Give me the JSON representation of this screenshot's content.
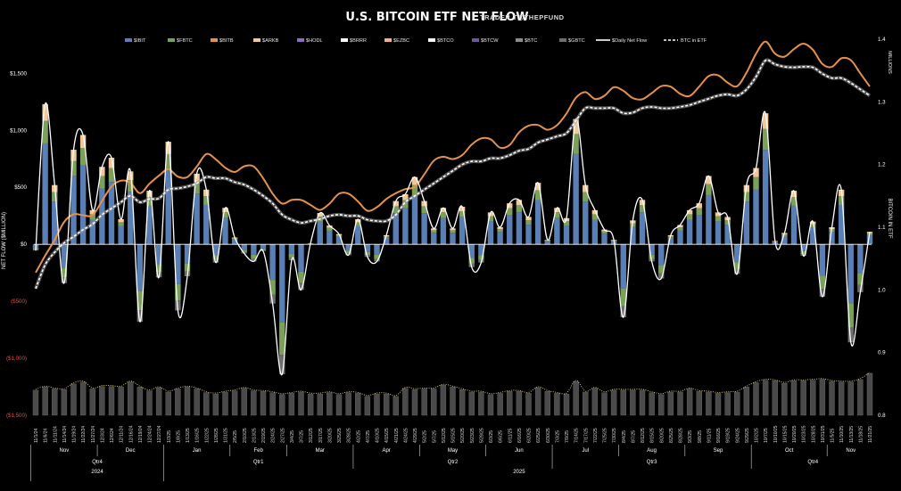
{
  "chart_data": {
    "type": "bar",
    "title": "U.S. BITCOIN ETF NET FLOW",
    "subtitle": "TRADER T@THEPFUND",
    "ylabel": "NET FLOW ($MILLION)",
    "y2label": "BITCOIN IN ETF",
    "y2unit": "MILLIONS",
    "ylim": [
      -1500,
      1800
    ],
    "y2lim": [
      0.8,
      1.4
    ],
    "y_ticks": [
      {
        "value": 1500,
        "label": "$1,500"
      },
      {
        "value": 1000,
        "label": "$1,000"
      },
      {
        "value": 500,
        "label": "$500"
      },
      {
        "value": 0,
        "label": "$0"
      },
      {
        "value": -500,
        "label": "($500)"
      },
      {
        "value": -1000,
        "label": "($1,000)"
      },
      {
        "value": -1500,
        "label": "($1,500)"
      }
    ],
    "y2_ticks": [
      {
        "value": 1.4,
        "label": "1.4"
      },
      {
        "value": 1.3,
        "label": "1.3"
      },
      {
        "value": 1.2,
        "label": "1.2"
      },
      {
        "value": 1.1,
        "label": "1.1"
      },
      {
        "value": 1.0,
        "label": "1.0"
      },
      {
        "value": 0.9,
        "label": "0.9"
      },
      {
        "value": 0.8,
        "label": "0.8"
      }
    ],
    "negative_tick_color": "#ff3b3b",
    "legend_position": "top",
    "legend": [
      {
        "name": "$IBIT",
        "color": "#5a7fb5",
        "kind": "bar"
      },
      {
        "name": "$FBTC",
        "color": "#7aa05a",
        "kind": "bar"
      },
      {
        "name": "$BITB",
        "color": "#e6914a",
        "kind": "bar"
      },
      {
        "name": "$ARKB",
        "color": "#f2c89a",
        "kind": "bar"
      },
      {
        "name": "$HODL",
        "color": "#8a6fc0",
        "kind": "bar"
      },
      {
        "name": "$BRRR",
        "color": "#ffffff",
        "kind": "bar"
      },
      {
        "name": "$EZBC",
        "color": "#f0b090",
        "kind": "bar"
      },
      {
        "name": "$BTCO",
        "color": "#f4f4f4",
        "kind": "bar"
      },
      {
        "name": "$BTCW",
        "color": "#6b5a9a",
        "kind": "bar"
      },
      {
        "name": "$BTC",
        "color": "#8c8c8c",
        "kind": "bar"
      },
      {
        "name": "$GBTC",
        "color": "#6e6e6e",
        "kind": "bar"
      },
      {
        "name": "$Daily Net Flow",
        "color": "#ffffff",
        "kind": "line"
      },
      {
        "name": "BTC in ETF",
        "color": "#ffffff",
        "kind": "dashed"
      }
    ],
    "dates": [
      "11/1/24",
      "11/6/24",
      "11/11/24",
      "11/14/24",
      "11/19/24",
      "11/22/24",
      "11/27/24",
      "12/3/24",
      "12/6/24",
      "12/11/24",
      "12/16/24",
      "12/19/24",
      "12/24/24",
      "12/27/24",
      "1/3/25",
      "1/8/25",
      "1/13/25",
      "1/16/25",
      "1/22/25",
      "1/28/25",
      "1/31/25",
      "2/5/25",
      "2/10/25",
      "2/13/25",
      "2/19/25",
      "2/24/25",
      "2/27/25",
      "3/4/25",
      "3/7/25",
      "3/12/25",
      "3/17/25",
      "3/20/25",
      "3/25/25",
      "3/28/25",
      "4/2/25",
      "4/7/25",
      "4/10/25",
      "4/15/25",
      "4/21/25",
      "4/24/25",
      "4/29/25",
      "5/2/25",
      "5/7/25",
      "5/12/25",
      "5/15/25",
      "5/20/25",
      "5/23/25",
      "5/29/25",
      "6/3/25",
      "6/6/25",
      "6/11/25",
      "6/16/25",
      "6/20/25",
      "6/25/25",
      "6/30/25",
      "7/3/25",
      "7/9/25",
      "7/14/25",
      "7/17/25",
      "7/22/25",
      "7/25/25",
      "7/30/25",
      "8/4/25",
      "8/7/25",
      "8/12/25",
      "8/15/25",
      "8/20/25",
      "8/25/25",
      "8/28/25",
      "9/3/25",
      "9/8/25",
      "9/11/25",
      "9/16/25",
      "9/19/25",
      "9/24/25",
      "9/29/25",
      "10/2/25",
      "10/7/25",
      "10/10/25",
      "10/15/25",
      "10/20/25",
      "10/23/25",
      "10/28/25",
      "10/31/25",
      "11/5/25",
      "11/10/25",
      "11/13/25",
      "11/18/25",
      "11/21/25"
    ],
    "date_values": [
      {
        "date": "11/1/24",
        "daily_net_flow": -55,
        "btc_in_etf": 1.002,
        "btc_in_etf_bars": 0.84
      },
      {
        "date": "11/6/24",
        "daily_net_flow": 1230,
        "btc_in_etf": 1.04,
        "btc_in_etf_bars": 0.845
      },
      {
        "date": "11/11/24",
        "daily_net_flow": 520,
        "btc_in_etf": 1.06,
        "btc_in_etf_bars": 0.842
      },
      {
        "date": "11/14/24",
        "daily_net_flow": -340,
        "btc_in_etf": 1.075,
        "btc_in_etf_bars": 0.841
      },
      {
        "date": "11/19/24",
        "daily_net_flow": 830,
        "btc_in_etf": 1.085,
        "btc_in_etf_bars": 0.85
      },
      {
        "date": "11/22/24",
        "daily_net_flow": 960,
        "btc_in_etf": 1.096,
        "btc_in_etf_bars": 0.853
      },
      {
        "date": "11/27/24",
        "daily_net_flow": 300,
        "btc_in_etf": 1.105,
        "btc_in_etf_bars": 0.842
      },
      {
        "date": "12/3/24",
        "daily_net_flow": 680,
        "btc_in_etf": 1.12,
        "btc_in_etf_bars": 0.846
      },
      {
        "date": "12/6/24",
        "daily_net_flow": 760,
        "btc_in_etf": 1.13,
        "btc_in_etf_bars": 0.846
      },
      {
        "date": "12/11/24",
        "daily_net_flow": 220,
        "btc_in_etf": 1.14,
        "btc_in_etf_bars": 0.845
      },
      {
        "date": "12/16/24",
        "daily_net_flow": 640,
        "btc_in_etf": 1.15,
        "btc_in_etf_bars": 0.853
      },
      {
        "date": "12/19/24",
        "daily_net_flow": -680,
        "btc_in_etf": 1.14,
        "btc_in_etf_bars": 0.845
      },
      {
        "date": "12/24/24",
        "daily_net_flow": 470,
        "btc_in_etf": 1.145,
        "btc_in_etf_bars": 0.839
      },
      {
        "date": "12/27/24",
        "daily_net_flow": -290,
        "btc_in_etf": 1.146,
        "btc_in_etf_bars": 0.844
      },
      {
        "date": "1/3/25",
        "daily_net_flow": 900,
        "btc_in_etf": 1.16,
        "btc_in_etf_bars": 0.837
      },
      {
        "date": "1/8/25",
        "daily_net_flow": -580,
        "btc_in_etf": 1.162,
        "btc_in_etf_bars": 0.842
      },
      {
        "date": "1/13/25",
        "daily_net_flow": -280,
        "btc_in_etf": 1.165,
        "btc_in_etf_bars": 0.845
      },
      {
        "date": "1/16/25",
        "daily_net_flow": 620,
        "btc_in_etf": 1.17,
        "btc_in_etf_bars": 0.842
      },
      {
        "date": "1/22/25",
        "daily_net_flow": 480,
        "btc_in_etf": 1.18,
        "btc_in_etf_bars": 0.836
      },
      {
        "date": "1/28/25",
        "daily_net_flow": -160,
        "btc_in_etf": 1.178,
        "btc_in_etf_bars": 0.834
      },
      {
        "date": "1/31/25",
        "daily_net_flow": 320,
        "btc_in_etf": 1.178,
        "btc_in_etf_bars": 0.837
      },
      {
        "date": "2/5/25",
        "daily_net_flow": 60,
        "btc_in_etf": 1.172,
        "btc_in_etf_bars": 0.839
      },
      {
        "date": "2/10/25",
        "daily_net_flow": -80,
        "btc_in_etf": 1.168,
        "btc_in_etf_bars": 0.843
      },
      {
        "date": "2/13/25",
        "daily_net_flow": -150,
        "btc_in_etf": 1.16,
        "btc_in_etf_bars": 0.839
      },
      {
        "date": "2/19/25",
        "daily_net_flow": -60,
        "btc_in_etf": 1.15,
        "btc_in_etf_bars": 0.838
      },
      {
        "date": "2/24/25",
        "daily_net_flow": -520,
        "btc_in_etf": 1.138,
        "btc_in_etf_bars": 0.836
      },
      {
        "date": "2/27/25",
        "daily_net_flow": -1140,
        "btc_in_etf": 1.12,
        "btc_in_etf_bars": 0.833
      },
      {
        "date": "3/4/25",
        "daily_net_flow": -140,
        "btc_in_etf": 1.112,
        "btc_in_etf_bars": 0.835
      },
      {
        "date": "3/7/25",
        "daily_net_flow": -400,
        "btc_in_etf": 1.107,
        "btc_in_etf_bars": 0.837
      },
      {
        "date": "3/12/25",
        "daily_net_flow": 10,
        "btc_in_etf": 1.11,
        "btc_in_etf_bars": 0.834
      },
      {
        "date": "3/17/25",
        "daily_net_flow": 275,
        "btc_in_etf": 1.113,
        "btc_in_etf_bars": 0.834
      },
      {
        "date": "3/20/25",
        "daily_net_flow": 165,
        "btc_in_etf": 1.118,
        "btc_in_etf_bars": 0.836
      },
      {
        "date": "3/25/25",
        "daily_net_flow": 90,
        "btc_in_etf": 1.12,
        "btc_in_etf_bars": 0.833
      },
      {
        "date": "3/28/25",
        "daily_net_flow": -95,
        "btc_in_etf": 1.118,
        "btc_in_etf_bars": 0.836
      },
      {
        "date": "4/2/25",
        "daily_net_flow": 220,
        "btc_in_etf": 1.118,
        "btc_in_etf_bars": 0.835
      },
      {
        "date": "4/7/25",
        "daily_net_flow": -110,
        "btc_in_etf": 1.112,
        "btc_in_etf_bars": 0.83
      },
      {
        "date": "4/10/25",
        "daily_net_flow": -150,
        "btc_in_etf": 1.11,
        "btc_in_etf_bars": 0.834
      },
      {
        "date": "4/15/25",
        "daily_net_flow": 80,
        "btc_in_etf": 1.11,
        "btc_in_etf_bars": 0.834
      },
      {
        "date": "4/21/25",
        "daily_net_flow": 380,
        "btc_in_etf": 1.12,
        "btc_in_etf_bars": 0.83
      },
      {
        "date": "4/24/25",
        "daily_net_flow": 440,
        "btc_in_etf": 1.14,
        "btc_in_etf_bars": 0.843
      },
      {
        "date": "4/29/25",
        "daily_net_flow": 590,
        "btc_in_etf": 1.15,
        "btc_in_etf_bars": 0.841
      },
      {
        "date": "5/2/25",
        "daily_net_flow": 380,
        "btc_in_etf": 1.16,
        "btc_in_etf_bars": 0.842
      },
      {
        "date": "5/7/25",
        "daily_net_flow": 140,
        "btc_in_etf": 1.17,
        "btc_in_etf_bars": 0.842
      },
      {
        "date": "5/12/25",
        "daily_net_flow": 320,
        "btc_in_etf": 1.18,
        "btc_in_etf_bars": 0.848
      },
      {
        "date": "5/15/25",
        "daily_net_flow": 140,
        "btc_in_etf": 1.19,
        "btc_in_etf_bars": 0.845
      },
      {
        "date": "5/20/25",
        "daily_net_flow": 330,
        "btc_in_etf": 1.2,
        "btc_in_etf_bars": 0.841
      },
      {
        "date": "5/23/25",
        "daily_net_flow": -200,
        "btc_in_etf": 1.205,
        "btc_in_etf_bars": 0.837
      },
      {
        "date": "5/29/25",
        "daily_net_flow": -160,
        "btc_in_etf": 1.205,
        "btc_in_etf_bars": 0.837
      },
      {
        "date": "6/3/25",
        "daily_net_flow": 280,
        "btc_in_etf": 1.21,
        "btc_in_etf_bars": 0.833
      },
      {
        "date": "6/6/25",
        "daily_net_flow": 150,
        "btc_in_etf": 1.21,
        "btc_in_etf_bars": 0.835
      },
      {
        "date": "6/11/25",
        "daily_net_flow": 360,
        "btc_in_etf": 1.215,
        "btc_in_etf_bars": 0.838
      },
      {
        "date": "6/16/25",
        "daily_net_flow": 390,
        "btc_in_etf": 1.222,
        "btc_in_etf_bars": 0.838
      },
      {
        "date": "6/20/25",
        "daily_net_flow": 240,
        "btc_in_etf": 1.225,
        "btc_in_etf_bars": 0.835
      },
      {
        "date": "6/25/25",
        "daily_net_flow": 540,
        "btc_in_etf": 1.235,
        "btc_in_etf_bars": 0.844
      },
      {
        "date": "6/30/25",
        "daily_net_flow": 40,
        "btc_in_etf": 1.24,
        "btc_in_etf_bars": 0.838
      },
      {
        "date": "7/3/25",
        "daily_net_flow": 320,
        "btc_in_etf": 1.245,
        "btc_in_etf_bars": 0.835
      },
      {
        "date": "7/9/25",
        "daily_net_flow": 230,
        "btc_in_etf": 1.25,
        "btc_in_etf_bars": 0.834
      },
      {
        "date": "7/14/25",
        "daily_net_flow": 1100,
        "btc_in_etf": 1.27,
        "btc_in_etf_bars": 0.854
      },
      {
        "date": "7/17/25",
        "daily_net_flow": 520,
        "btc_in_etf": 1.29,
        "btc_in_etf_bars": 0.837
      },
      {
        "date": "7/22/25",
        "daily_net_flow": 300,
        "btc_in_etf": 1.29,
        "btc_in_etf_bars": 0.843
      },
      {
        "date": "7/25/25",
        "daily_net_flow": 130,
        "btc_in_etf": 1.29,
        "btc_in_etf_bars": 0.836
      },
      {
        "date": "7/30/25",
        "daily_net_flow": 40,
        "btc_in_etf": 1.29,
        "btc_in_etf_bars": 0.84
      },
      {
        "date": "8/4/25",
        "daily_net_flow": -640,
        "btc_in_etf": 1.282,
        "btc_in_etf_bars": 0.84
      },
      {
        "date": "8/7/25",
        "daily_net_flow": 210,
        "btc_in_etf": 1.283,
        "btc_in_etf_bars": 0.84
      },
      {
        "date": "8/12/25",
        "daily_net_flow": 390,
        "btc_in_etf": 1.29,
        "btc_in_etf_bars": 0.84
      },
      {
        "date": "8/15/25",
        "daily_net_flow": -150,
        "btc_in_etf": 1.292,
        "btc_in_etf_bars": 0.836
      },
      {
        "date": "8/20/25",
        "daily_net_flow": -300,
        "btc_in_etf": 1.29,
        "btc_in_etf_bars": 0.833
      },
      {
        "date": "8/25/25",
        "daily_net_flow": 80,
        "btc_in_etf": 1.29,
        "btc_in_etf_bars": 0.837
      },
      {
        "date": "8/28/25",
        "daily_net_flow": 170,
        "btc_in_etf": 1.292,
        "btc_in_etf_bars": 0.837
      },
      {
        "date": "9/3/25",
        "daily_net_flow": 300,
        "btc_in_etf": 1.295,
        "btc_in_etf_bars": 0.842
      },
      {
        "date": "9/8/25",
        "daily_net_flow": 360,
        "btc_in_etf": 1.3,
        "btc_in_etf_bars": 0.838
      },
      {
        "date": "9/11/25",
        "daily_net_flow": 600,
        "btc_in_etf": 1.305,
        "btc_in_etf_bars": 0.837
      },
      {
        "date": "9/16/25",
        "daily_net_flow": 280,
        "btc_in_etf": 1.31,
        "btc_in_etf_bars": 0.835
      },
      {
        "date": "9/19/25",
        "daily_net_flow": 240,
        "btc_in_etf": 1.312,
        "btc_in_etf_bars": 0.836
      },
      {
        "date": "9/24/25",
        "daily_net_flow": -260,
        "btc_in_etf": 1.31,
        "btc_in_etf_bars": 0.837
      },
      {
        "date": "9/29/25",
        "daily_net_flow": 520,
        "btc_in_etf": 1.32,
        "btc_in_etf_bars": 0.845
      },
      {
        "date": "10/2/25",
        "daily_net_flow": 670,
        "btc_in_etf": 1.34,
        "btc_in_etf_bars": 0.852
      },
      {
        "date": "10/7/25",
        "daily_net_flow": 1150,
        "btc_in_etf": 1.366,
        "btc_in_etf_bars": 0.856
      },
      {
        "date": "10/10/25",
        "daily_net_flow": 30,
        "btc_in_etf": 1.36,
        "btc_in_etf_bars": 0.855
      },
      {
        "date": "10/15/25",
        "daily_net_flow": 100,
        "btc_in_etf": 1.356,
        "btc_in_etf_bars": 0.851
      },
      {
        "date": "10/20/25",
        "daily_net_flow": 470,
        "btc_in_etf": 1.355,
        "btc_in_etf_bars": 0.855
      },
      {
        "date": "10/23/25",
        "daily_net_flow": -100,
        "btc_in_etf": 1.356,
        "btc_in_etf_bars": 0.855
      },
      {
        "date": "10/28/25",
        "daily_net_flow": 200,
        "btc_in_etf": 1.355,
        "btc_in_etf_bars": 0.856
      },
      {
        "date": "10/31/25",
        "daily_net_flow": -460,
        "btc_in_etf": 1.345,
        "btc_in_etf_bars": 0.857
      },
      {
        "date": "11/5/25",
        "daily_net_flow": 150,
        "btc_in_etf": 1.338,
        "btc_in_etf_bars": 0.854
      },
      {
        "date": "11/10/25",
        "daily_net_flow": 480,
        "btc_in_etf": 1.338,
        "btc_in_etf_bars": 0.853
      },
      {
        "date": "11/13/25",
        "daily_net_flow": -860,
        "btc_in_etf": 1.33,
        "btc_in_etf_bars": 0.853
      },
      {
        "date": "11/18/25",
        "daily_net_flow": -420,
        "btc_in_etf": 1.32,
        "btc_in_etf_bars": 0.857
      },
      {
        "date": "11/21/25",
        "daily_net_flow": 110,
        "btc_in_etf": 1.31,
        "btc_in_etf_bars": 0.867
      }
    ],
    "months": [
      {
        "label": "Nov",
        "start": "11/1/24",
        "end": "11/27/24"
      },
      {
        "label": "Dec",
        "start": "12/3/24",
        "end": "12/27/24"
      },
      {
        "label": "Jan",
        "start": "1/3/25",
        "end": "1/31/25"
      },
      {
        "label": "Feb",
        "start": "2/5/25",
        "end": "2/27/25"
      },
      {
        "label": "Mar",
        "start": "3/4/25",
        "end": "3/28/25"
      },
      {
        "label": "Apr",
        "start": "4/2/25",
        "end": "4/29/25"
      },
      {
        "label": "May",
        "start": "5/2/25",
        "end": "5/29/25"
      },
      {
        "label": "Jun",
        "start": "6/3/25",
        "end": "6/30/25"
      },
      {
        "label": "Jul",
        "start": "7/3/25",
        "end": "7/30/25"
      },
      {
        "label": "Aug",
        "start": "8/4/25",
        "end": "8/28/25"
      },
      {
        "label": "Sep",
        "start": "9/3/25",
        "end": "9/29/25"
      },
      {
        "label": "Oct",
        "start": "10/2/25",
        "end": "10/31/25"
      },
      {
        "label": "Nov",
        "start": "11/5/25",
        "end": "11/21/25"
      }
    ],
    "quarters": [
      {
        "label": "Qtr4",
        "start": "11/1/24",
        "end": "12/27/24"
      },
      {
        "label": "Qtr1",
        "start": "1/3/25",
        "end": "3/28/25"
      },
      {
        "label": "Qtr2",
        "start": "4/2/25",
        "end": "6/30/25"
      },
      {
        "label": "Qtr3",
        "start": "7/3/25",
        "end": "9/29/25"
      },
      {
        "label": "Qtr4",
        "start": "10/2/25",
        "end": "11/21/25"
      }
    ],
    "years": [
      {
        "label": "2024",
        "start": "11/1/24",
        "end": "12/27/24"
      },
      {
        "label": "2025",
        "start": "1/3/25",
        "end": "11/21/25"
      }
    ]
  }
}
